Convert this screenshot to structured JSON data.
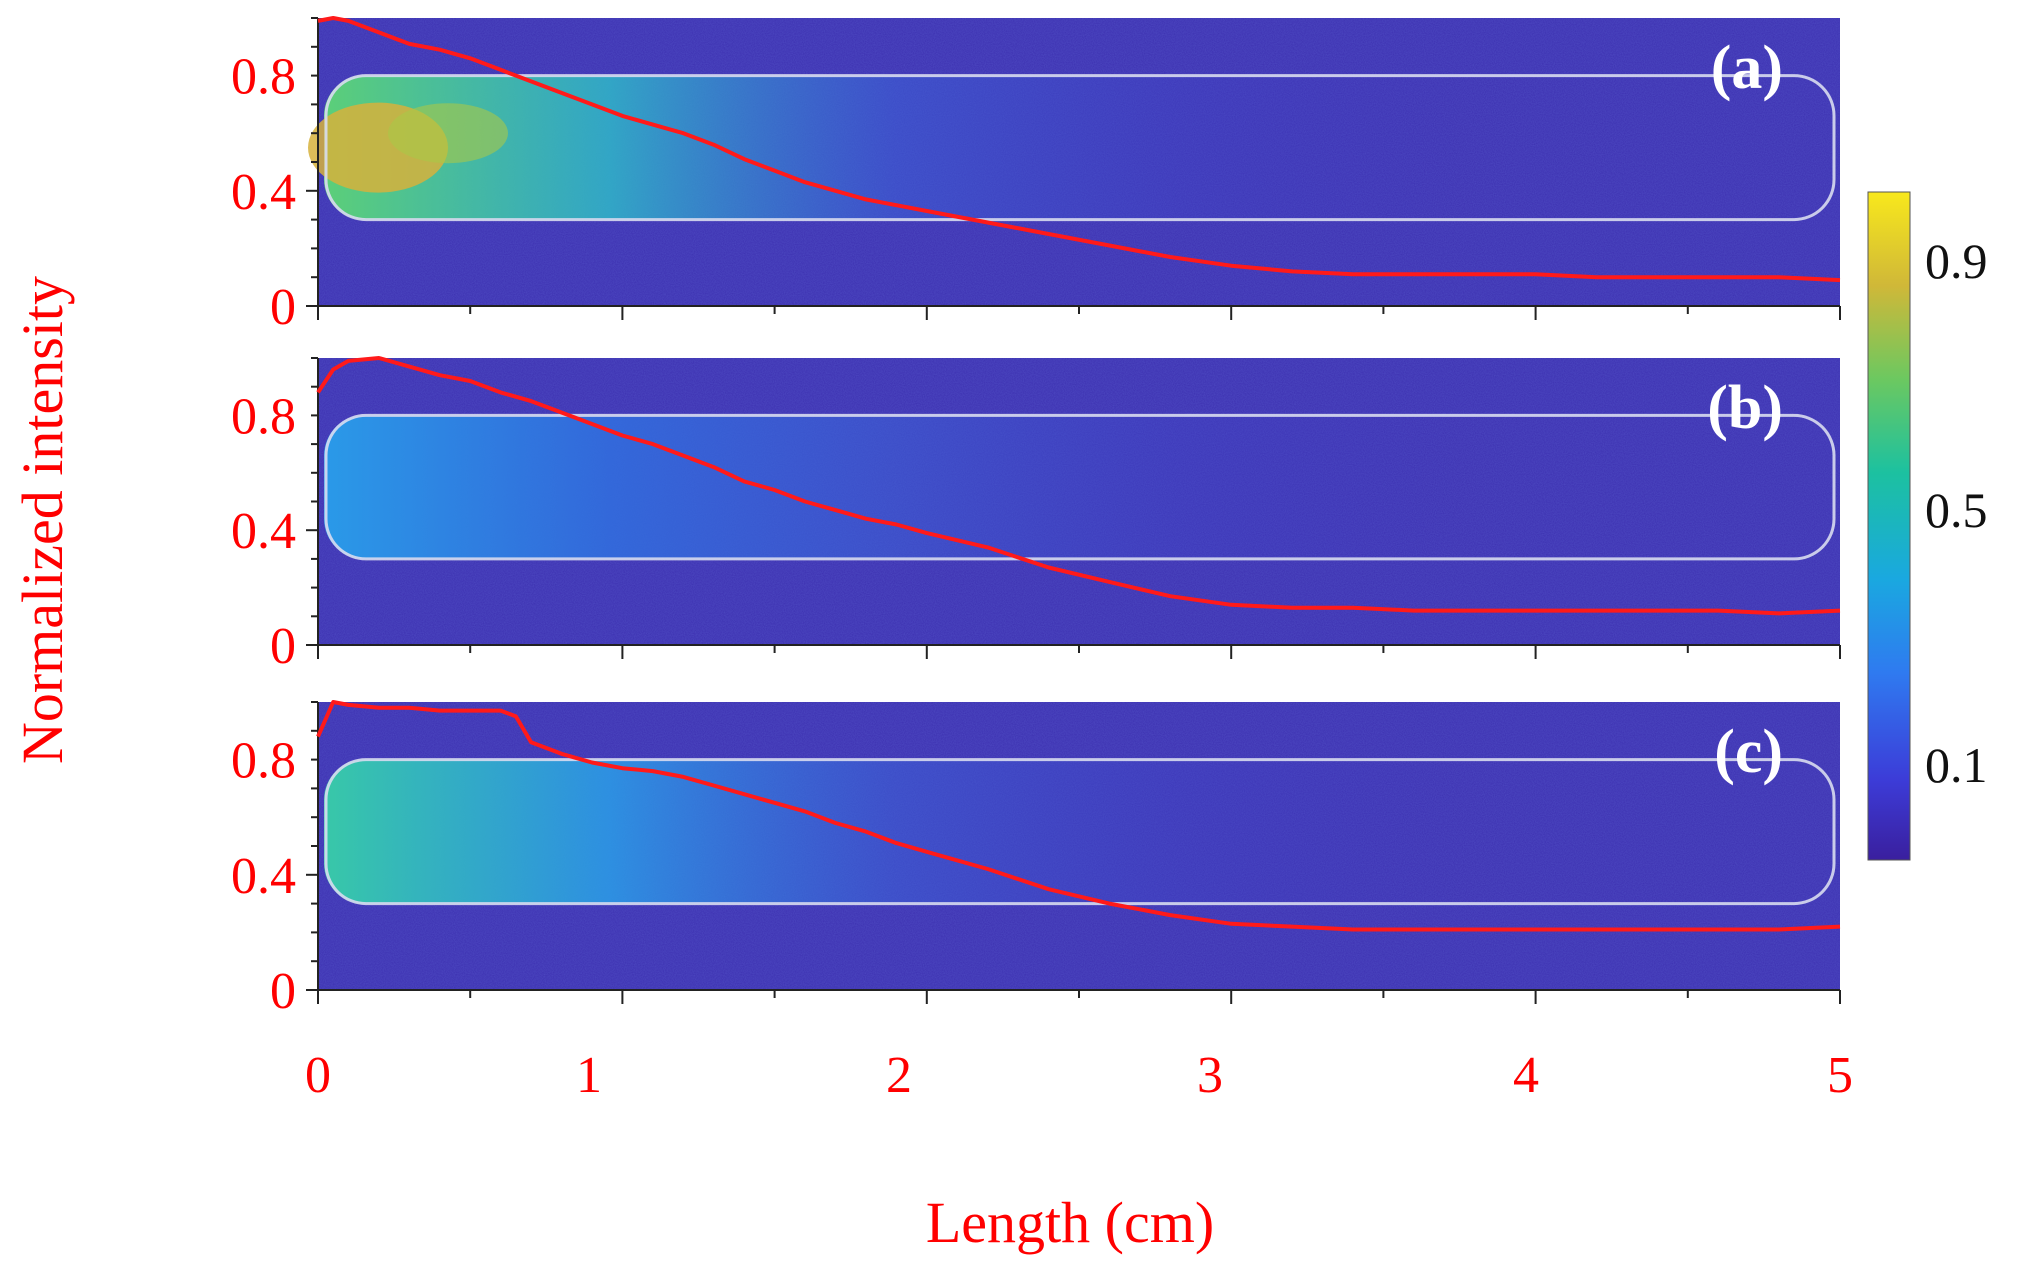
{
  "chart_data": {
    "type": "line",
    "ylabel": "Normalized intensity",
    "xlabel": "Length (cm)",
    "xlim": [
      0,
      5
    ],
    "ylim": [
      0,
      1
    ],
    "x_ticks": [
      "0",
      "1",
      "2",
      "3",
      "4",
      "5"
    ],
    "y_ticks": [
      "0",
      "0.4",
      "0.8"
    ],
    "colorbar": {
      "ticks": [
        "0.9",
        "0.5",
        "0.1"
      ],
      "tick_values": [
        0.9,
        0.5,
        0.1
      ],
      "range": [
        0,
        1
      ]
    },
    "colors": {
      "axis_text": "#ff0000",
      "curve": "#ff1a1a",
      "background_map": "#3c2fb0",
      "outline": "#d8dcf0"
    },
    "panels": [
      {
        "label": "(a)",
        "glow_peak": 0.85,
        "series": [
          {
            "x": [
              0,
              0.05,
              0.1,
              0.2,
              0.3,
              0.4,
              0.5,
              0.6,
              0.7,
              0.8,
              0.9,
              1.0,
              1.1,
              1.2,
              1.3,
              1.4,
              1.5,
              1.6,
              1.7,
              1.8,
              1.9,
              2.0,
              2.2,
              2.4,
              2.6,
              2.8,
              3.0,
              3.2,
              3.4,
              3.6,
              3.8,
              4.0,
              4.2,
              4.4,
              4.6,
              4.8,
              5.0
            ],
            "y": [
              0.99,
              1.0,
              0.99,
              0.95,
              0.91,
              0.89,
              0.86,
              0.82,
              0.78,
              0.74,
              0.7,
              0.66,
              0.63,
              0.6,
              0.56,
              0.51,
              0.47,
              0.43,
              0.4,
              0.37,
              0.35,
              0.33,
              0.29,
              0.25,
              0.21,
              0.17,
              0.14,
              0.12,
              0.11,
              0.11,
              0.11,
              0.11,
              0.1,
              0.1,
              0.1,
              0.1,
              0.09
            ]
          }
        ]
      },
      {
        "label": "(b)",
        "glow_peak": 0.38,
        "series": [
          {
            "x": [
              0,
              0.05,
              0.1,
              0.2,
              0.3,
              0.4,
              0.5,
              0.6,
              0.7,
              0.8,
              0.9,
              1.0,
              1.1,
              1.2,
              1.3,
              1.4,
              1.5,
              1.6,
              1.7,
              1.8,
              1.9,
              2.0,
              2.2,
              2.4,
              2.6,
              2.8,
              3.0,
              3.2,
              3.4,
              3.6,
              3.8,
              4.0,
              4.2,
              4.4,
              4.6,
              4.8,
              5.0
            ],
            "y": [
              0.88,
              0.96,
              0.99,
              1.0,
              0.97,
              0.94,
              0.92,
              0.88,
              0.85,
              0.81,
              0.77,
              0.73,
              0.7,
              0.66,
              0.62,
              0.57,
              0.54,
              0.5,
              0.47,
              0.44,
              0.42,
              0.39,
              0.34,
              0.27,
              0.22,
              0.17,
              0.14,
              0.13,
              0.13,
              0.12,
              0.12,
              0.12,
              0.12,
              0.12,
              0.12,
              0.11,
              0.12
            ]
          }
        ]
      },
      {
        "label": "(c)",
        "glow_peak": 0.5,
        "series": [
          {
            "x": [
              0,
              0.05,
              0.1,
              0.2,
              0.3,
              0.4,
              0.5,
              0.6,
              0.65,
              0.7,
              0.8,
              0.9,
              1.0,
              1.1,
              1.2,
              1.3,
              1.4,
              1.5,
              1.6,
              1.7,
              1.8,
              1.9,
              2.0,
              2.2,
              2.4,
              2.6,
              2.8,
              3.0,
              3.2,
              3.4,
              3.6,
              3.8,
              4.0,
              4.2,
              4.4,
              4.6,
              4.8,
              5.0
            ],
            "y": [
              0.88,
              1.0,
              0.99,
              0.98,
              0.98,
              0.97,
              0.97,
              0.97,
              0.95,
              0.86,
              0.82,
              0.79,
              0.77,
              0.76,
              0.74,
              0.71,
              0.68,
              0.65,
              0.62,
              0.58,
              0.55,
              0.51,
              0.48,
              0.42,
              0.35,
              0.3,
              0.26,
              0.23,
              0.22,
              0.21,
              0.21,
              0.21,
              0.21,
              0.21,
              0.21,
              0.21,
              0.21,
              0.22
            ]
          }
        ]
      }
    ]
  }
}
